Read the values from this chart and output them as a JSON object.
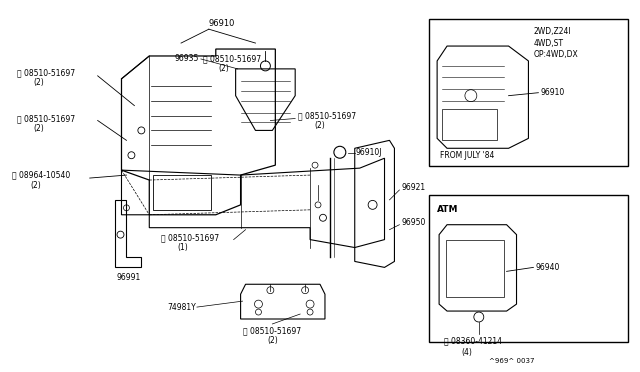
{
  "background_color": "#ffffff",
  "line_color": "#000000",
  "figure_width": 6.4,
  "figure_height": 3.72,
  "dpi": 100,
  "inset1_text": [
    "2WD,Z24I",
    "4WD,ST",
    "OP:4WD,DX"
  ],
  "inset1_caption": "FROM JULY '84",
  "inset2_caption": "ATM",
  "ref_code": "^969^ 0037"
}
